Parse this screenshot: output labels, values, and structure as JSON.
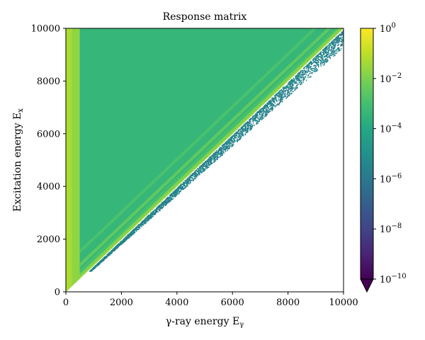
{
  "chart_data": {
    "type": "heatmap",
    "title": "Response matrix",
    "xlabel": "γ-ray energy E",
    "xlabel_sub": "γ",
    "ylabel": "Excitation energy E",
    "ylabel_sub": "x",
    "xlim": [
      0,
      10000
    ],
    "ylim": [
      0,
      10000
    ],
    "x_ticks": [
      0,
      2000,
      4000,
      6000,
      8000,
      10000
    ],
    "y_ticks": [
      0,
      2000,
      4000,
      6000,
      8000,
      10000
    ],
    "colorbar": {
      "scale": "log",
      "range": [
        1e-10,
        1
      ],
      "ticks": [
        {
          "base": "10",
          "exp": "0",
          "value_log10": 0
        },
        {
          "base": "10",
          "exp": "−2",
          "value_log10": -2
        },
        {
          "base": "10",
          "exp": "−4",
          "value_log10": -4
        },
        {
          "base": "10",
          "exp": "−6",
          "value_log10": -6
        },
        {
          "base": "10",
          "exp": "−8",
          "value_log10": -8
        },
        {
          "base": "10",
          "exp": "−10",
          "value_log10": -10
        }
      ],
      "extend": "min",
      "colormap": "viridis"
    },
    "features": {
      "full_energy_diagonal": "Eγ = Ex",
      "low_energy_band_max": 500,
      "single_escape_offset": 511,
      "double_escape_offset": 1022,
      "background_log10": -3.4
    },
    "grid": false
  }
}
